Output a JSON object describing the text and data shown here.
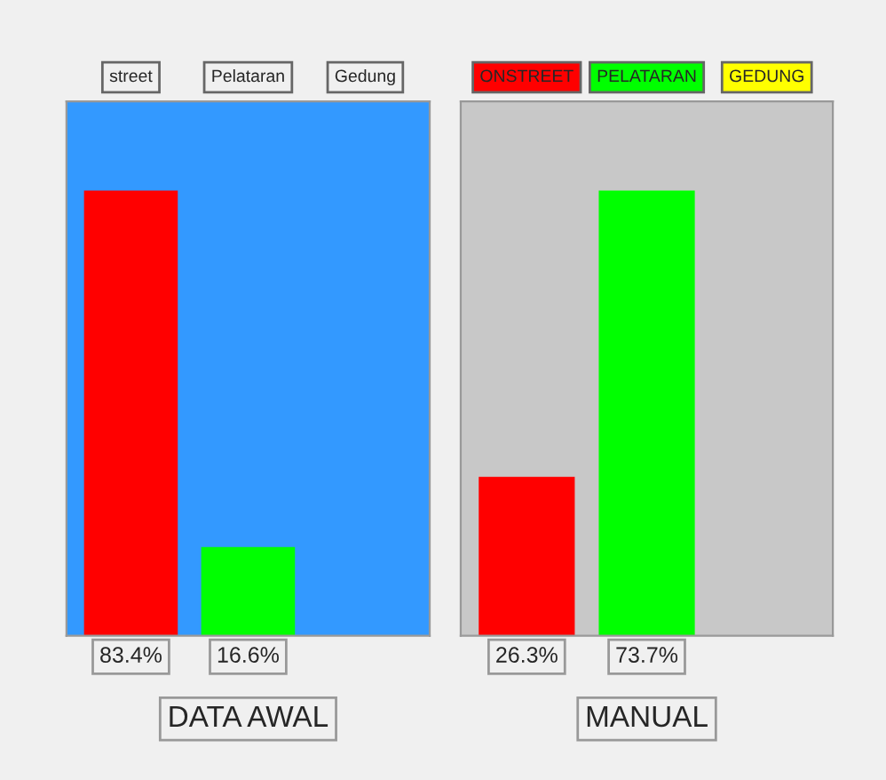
{
  "chart_data": [
    {
      "type": "bar",
      "xlabel": "DATA AWAL",
      "categories": [
        "street",
        "Pelataran",
        "Gedung"
      ],
      "values": [
        83.4,
        16.6,
        null
      ],
      "colors": [
        "#ff0000",
        "#00ff00",
        "#ffff00"
      ],
      "value_labels": [
        "83.4%",
        "16.6%",
        null
      ],
      "tick_labels": "x"
    },
    {
      "type": "bar",
      "xlabel": "MANUAL",
      "categories": [
        "ONSTREET",
        "PELATARAN",
        "GEDUNG"
      ],
      "values": [
        26.3,
        73.7,
        null
      ],
      "colors": [
        "#ff0000",
        "#00ff00",
        "#ffff00"
      ],
      "value_labels": [
        "26.3%",
        "73.7%",
        null
      ],
      "tick_labels": "x"
    }
  ]
}
